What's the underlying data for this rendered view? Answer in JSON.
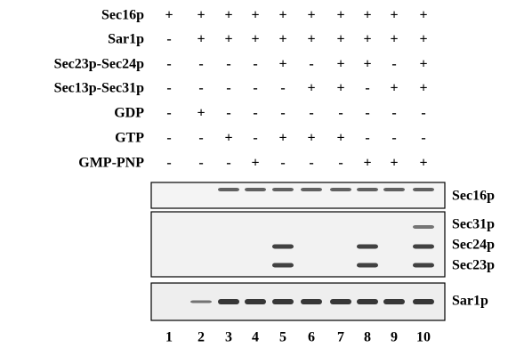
{
  "conditions": [
    {
      "label": "Sec16p",
      "signs": [
        "+",
        "+",
        "+",
        "+",
        "+",
        "+",
        "+",
        "+",
        "+",
        "+"
      ]
    },
    {
      "label": "Sar1p",
      "signs": [
        "-",
        "+",
        "+",
        "+",
        "+",
        "+",
        "+",
        "+",
        "+",
        "+"
      ]
    },
    {
      "label": "Sec23p-Sec24p",
      "signs": [
        "-",
        "-",
        "-",
        "-",
        "+",
        "-",
        "+",
        "+",
        "-",
        "+"
      ]
    },
    {
      "label": "Sec13p-Sec31p",
      "signs": [
        "-",
        "-",
        "-",
        "-",
        "-",
        "+",
        "+",
        "-",
        "+",
        "+"
      ]
    },
    {
      "label": "GDP",
      "signs": [
        "-",
        "+",
        "-",
        "-",
        "-",
        "-",
        "-",
        "-",
        "-",
        "-"
      ]
    },
    {
      "label": "GTP",
      "signs": [
        "-",
        "-",
        "+",
        "-",
        "+",
        "+",
        "+",
        "-",
        "-",
        "-"
      ]
    },
    {
      "label": "GMP-PNP",
      "signs": [
        "-",
        "-",
        "-",
        "+",
        "-",
        "-",
        "-",
        "+",
        "+",
        "+"
      ]
    }
  ],
  "blot_labels": [
    "Sec16p",
    "Sec31p",
    "Sec24p",
    "Sec23p",
    "Sar1p"
  ],
  "lanes": [
    "1",
    "2",
    "3",
    "4",
    "5",
    "6",
    "7",
    "8",
    "9",
    "10"
  ]
}
